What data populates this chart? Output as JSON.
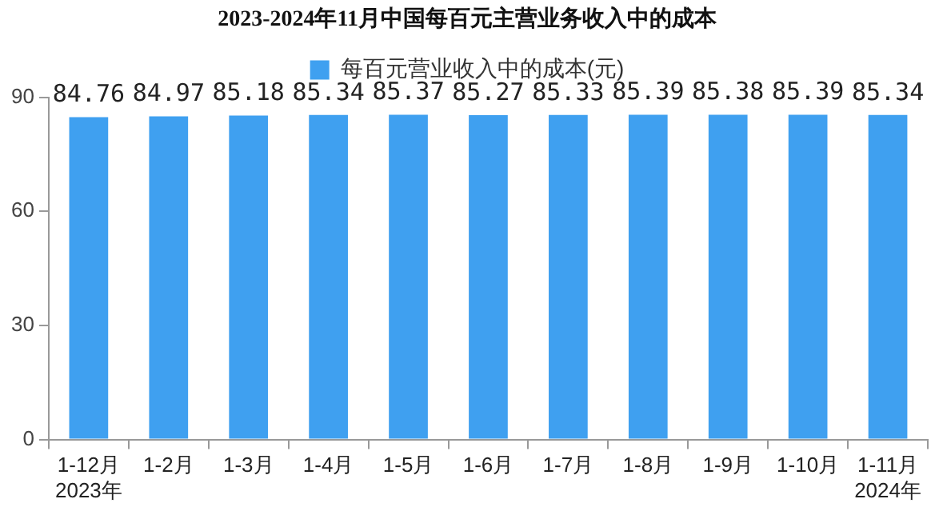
{
  "chart_data": {
    "type": "bar",
    "title": "2023-2024年11月中国每百元主营业务收入中的成本",
    "categories": [
      "1-12月\n2023年",
      "1-2月",
      "1-3月",
      "1-4月",
      "1-5月",
      "1-6月",
      "1-7月",
      "1-8月",
      "1-9月",
      "1-10月",
      "1-11月\n2024年"
    ],
    "series": [
      {
        "name": "每百元营业收入中的成本(元)",
        "color": "#3fa0f0",
        "values": [
          84.76,
          84.97,
          85.18,
          85.34,
          85.37,
          85.27,
          85.33,
          85.39,
          85.38,
          85.39,
          85.34
        ]
      }
    ],
    "ylim": [
      0,
      90
    ],
    "yticks": [
      0,
      30,
      60,
      90
    ],
    "grid": false,
    "legend": "top",
    "data_labels": true
  }
}
